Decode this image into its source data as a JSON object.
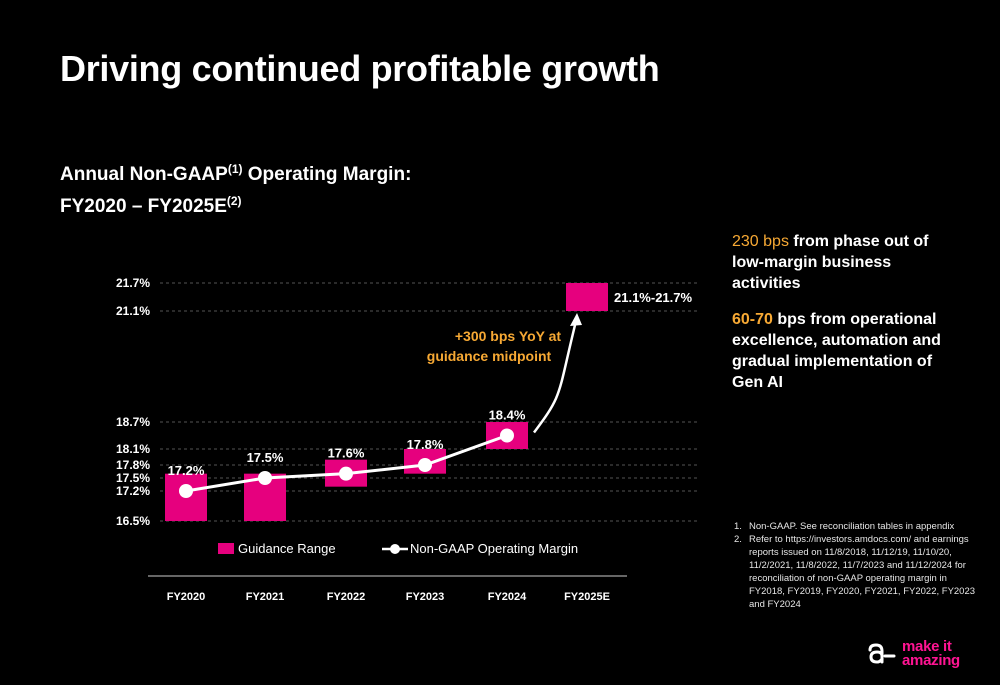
{
  "slide": {
    "title": "Driving continued profitable growth",
    "subtitle_line1_a": "Annual Non-GAAP",
    "subtitle_line1_sup": "(1)",
    "subtitle_line1_b": " Operating Margin:",
    "subtitle_line2_a": "FY2020 – FY2025E",
    "subtitle_line2_sup": "(2)"
  },
  "bullets": [
    {
      "highlight": "230 bps",
      "text": " from phase out of low-margin business activities"
    },
    {
      "highlight": "60-70",
      "text": " bps from operational excellence, automation and gradual implementation of Gen AI"
    }
  ],
  "footnotes": [
    {
      "num": "1.",
      "text": "Non-GAAP. See reconciliation tables in appendix"
    },
    {
      "num": "2.",
      "text": "Refer to https://investors.amdocs.com/ and earnings reports issued on 11/8/2018, 11/12/19, 11/10/20, 11/2/2021, 11/8/2022, 11/7/2023 and 11/12/2024 for reconciliation of non-GAAP operating margin in FY2018, FY2019, FY2020, FY2021, FY2022, FY2023 and FY2024"
    }
  ],
  "logo": {
    "line1": "make it",
    "line2": "amazing",
    "icon": "amdocs-a-icon"
  },
  "colors": {
    "accent_pink": "#e6007e",
    "accent_orange": "#f7a934",
    "background": "#000000",
    "line": "#ffffff"
  },
  "chart_data": {
    "type": "bar",
    "categories": [
      "FY2020",
      "FY2021",
      "FY2022",
      "FY2023",
      "FY2024",
      "FY2025E"
    ],
    "y_ticks": [
      16.5,
      17.2,
      17.5,
      17.8,
      18.1,
      18.7,
      21.1,
      21.7
    ],
    "y_tick_labels": [
      "16.5%",
      "17.2%",
      "17.5%",
      "17.8%",
      "18.1%",
      "18.7%",
      "21.1%",
      "21.7%"
    ],
    "ylim": [
      16.5,
      21.7
    ],
    "y_scale": "broken-axis",
    "grid": true,
    "series": [
      {
        "name": "Guidance Range",
        "kind": "range-bar",
        "low": [
          16.5,
          16.5,
          17.3,
          17.6,
          18.1,
          21.1
        ],
        "high": [
          17.6,
          17.6,
          17.9,
          18.1,
          18.7,
          21.7
        ]
      },
      {
        "name": "Non-GAAP Operating Margin",
        "kind": "line",
        "values": [
          17.2,
          17.5,
          17.6,
          17.8,
          18.4,
          null
        ],
        "labels": [
          "17.2%",
          "17.5%",
          "17.6%",
          "17.8%",
          "18.4%",
          ""
        ]
      }
    ],
    "range_label_fy2025e": "21.1%-21.7%",
    "annotation": "+300 bps YoY at guidance midpoint",
    "annotation_line1": "+300 bps YoY at",
    "annotation_line2": "guidance midpoint",
    "legend": {
      "placement": "bottom",
      "items": [
        "Guidance Range",
        "Non-GAAP Operating Margin"
      ]
    }
  }
}
